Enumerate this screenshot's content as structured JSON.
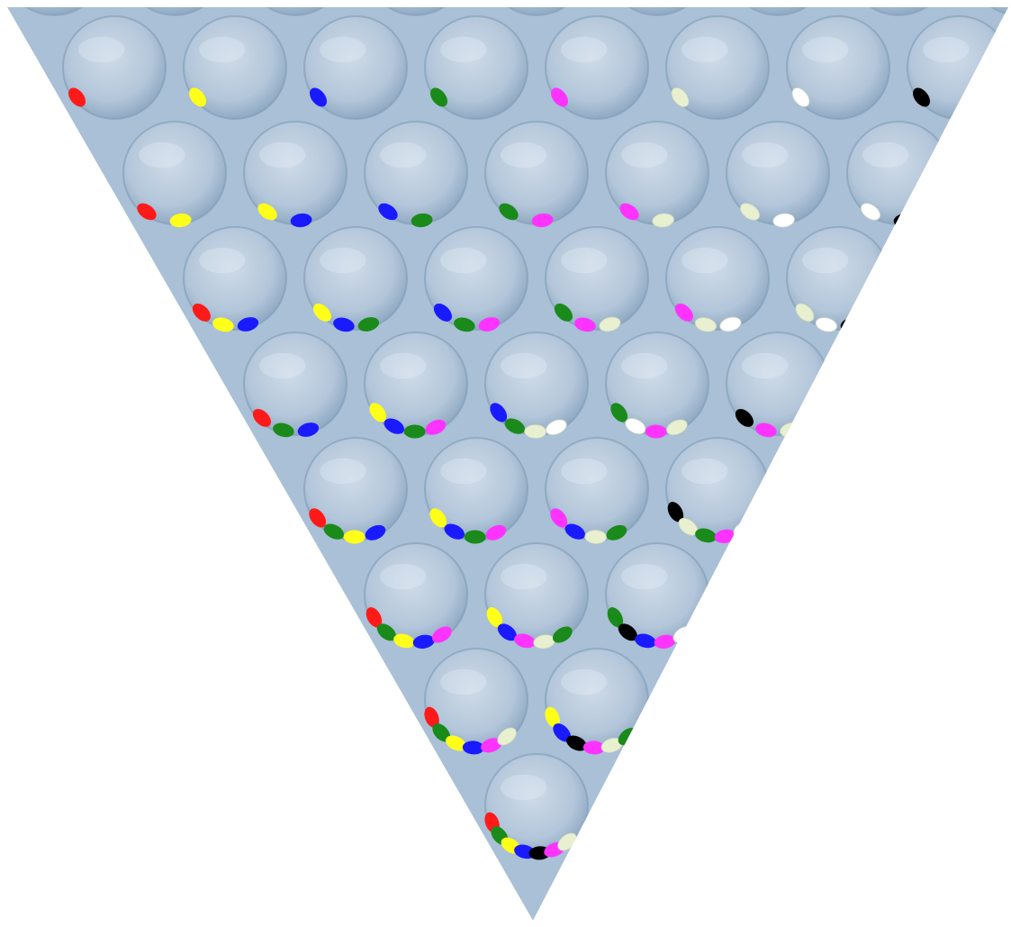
{
  "figure": {
    "background_color": "#ffffff",
    "panel_fill": "#a9c0d6",
    "bubble_fill": "#b9cde0",
    "bubble_highlight": "#e6eef6",
    "bubble_shadow": "#7f9bb6"
  },
  "palette": {
    "red": "#ff1a1a",
    "yellow": "#ffff1a",
    "blue": "#1a1aff",
    "green": "#1a8a1a",
    "magenta": "#ff33ff",
    "cream": "#e8f0d0",
    "white": "#ffffff",
    "black": "#000000"
  },
  "rows": [
    {
      "row": 1,
      "bubbles": [
        [
          "red"
        ],
        [
          "yellow"
        ],
        [
          "blue"
        ],
        [
          "green"
        ],
        [
          "magenta"
        ],
        [
          "cream"
        ],
        [
          "white"
        ],
        [
          "black"
        ]
      ]
    },
    {
      "row": 2,
      "bubbles": [
        [
          "red",
          "yellow"
        ],
        [
          "yellow",
          "blue"
        ],
        [
          "blue",
          "green"
        ],
        [
          "green",
          "magenta"
        ],
        [
          "magenta",
          "cream"
        ],
        [
          "cream",
          "white"
        ],
        [
          "white",
          "black"
        ]
      ]
    },
    {
      "row": 3,
      "bubbles": [
        [
          "red",
          "yellow",
          "blue"
        ],
        [
          "yellow",
          "blue",
          "green"
        ],
        [
          "blue",
          "green",
          "magenta"
        ],
        [
          "green",
          "magenta",
          "cream"
        ],
        [
          "magenta",
          "cream",
          "white"
        ],
        [
          "cream",
          "white",
          "black"
        ]
      ]
    },
    {
      "row": 4,
      "bubbles": [
        [
          "red",
          "green",
          "blue"
        ],
        [
          "yellow",
          "blue",
          "green",
          "magenta"
        ],
        [
          "blue",
          "green",
          "cream",
          "white"
        ],
        [
          "green",
          "white",
          "magenta",
          "cream"
        ],
        [
          "black",
          "magenta",
          "cream"
        ]
      ]
    },
    {
      "row": 5,
      "bubbles": [
        [
          "red",
          "green",
          "yellow",
          "blue"
        ],
        [
          "yellow",
          "blue",
          "green",
          "magenta"
        ],
        [
          "magenta",
          "blue",
          "cream",
          "green"
        ],
        [
          "black",
          "cream",
          "green",
          "magenta",
          "white"
        ]
      ]
    },
    {
      "row": 6,
      "bubbles": [
        [
          "red",
          "green",
          "yellow",
          "blue",
          "magenta"
        ],
        [
          "yellow",
          "blue",
          "magenta",
          "cream",
          "green"
        ],
        [
          "green",
          "black",
          "blue",
          "magenta",
          "white"
        ]
      ]
    },
    {
      "row": 7,
      "bubbles": [
        [
          "red",
          "green",
          "yellow",
          "blue",
          "magenta",
          "cream"
        ],
        [
          "yellow",
          "blue",
          "black",
          "magenta",
          "cream",
          "green"
        ]
      ]
    },
    {
      "row": 8,
      "bubbles": [
        [
          "red",
          "green",
          "yellow",
          "blue",
          "black",
          "magenta",
          "cream"
        ]
      ]
    }
  ]
}
